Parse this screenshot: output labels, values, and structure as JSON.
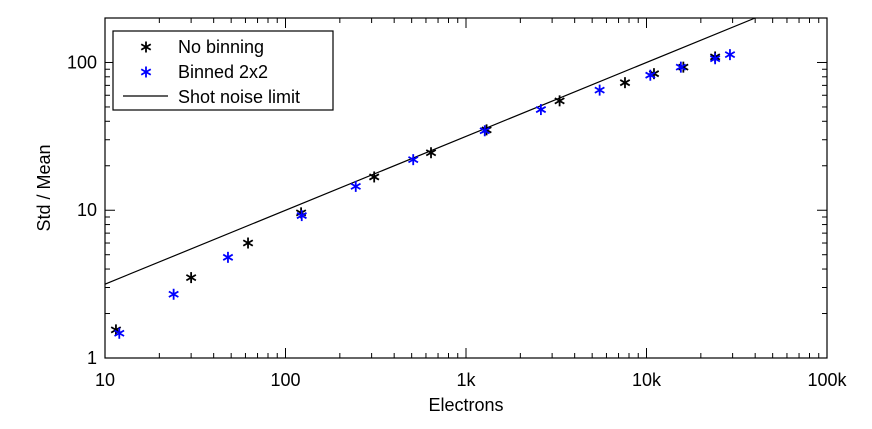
{
  "chart_data": {
    "type": "scatter",
    "title": "",
    "xlabel": "Electrons",
    "ylabel": "Std / Mean",
    "xscale": "log",
    "yscale": "log",
    "xlim": [
      10,
      100000
    ],
    "ylim": [
      1,
      200
    ],
    "xticks": [
      {
        "value": 10,
        "label": "10"
      },
      {
        "value": 100,
        "label": "100"
      },
      {
        "value": 1000,
        "label": "1k"
      },
      {
        "value": 10000,
        "label": "10k"
      },
      {
        "value": 100000,
        "label": "100k"
      }
    ],
    "yticks": [
      {
        "value": 1,
        "label": "1"
      },
      {
        "value": 10,
        "label": "10"
      },
      {
        "value": 100,
        "label": "100"
      }
    ],
    "grid": false,
    "legend_position": "top-left",
    "series": [
      {
        "name": "No binning",
        "marker": "asterisk",
        "color": "#000000",
        "points": [
          [
            11.5,
            1.55
          ],
          [
            30,
            3.5
          ],
          [
            62,
            6.0
          ],
          [
            122,
            9.6
          ],
          [
            310,
            16.8
          ],
          [
            640,
            24.5
          ],
          [
            1300,
            35
          ],
          [
            3300,
            55
          ],
          [
            7600,
            73
          ],
          [
            11000,
            84
          ],
          [
            16000,
            93
          ],
          [
            24000,
            109
          ]
        ]
      },
      {
        "name": "Binned 2x2",
        "marker": "asterisk",
        "color": "#0000ff",
        "points": [
          [
            12,
            1.47
          ],
          [
            24,
            2.7
          ],
          [
            48,
            4.8
          ],
          [
            123,
            9.2
          ],
          [
            245,
            14.5
          ],
          [
            510,
            22
          ],
          [
            1270,
            34.5
          ],
          [
            2600,
            48
          ],
          [
            5500,
            65
          ],
          [
            10500,
            82
          ],
          [
            15500,
            93
          ],
          [
            24000,
            106
          ],
          [
            29000,
            113
          ]
        ]
      },
      {
        "name": "Shot noise limit",
        "type": "line",
        "color": "#000000",
        "points": [
          [
            10,
            3.16
          ],
          [
            40000,
            200
          ]
        ]
      }
    ]
  }
}
